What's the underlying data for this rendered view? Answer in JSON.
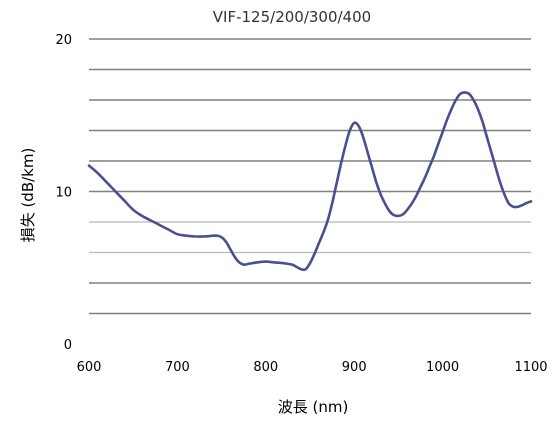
{
  "chart_data": {
    "type": "line",
    "title": "VIF-125/200/300/400",
    "xlabel": "波長 (nm)",
    "ylabel": "損失 (dB/km)",
    "xlim": [
      600,
      1100
    ],
    "ylim": [
      0,
      20
    ],
    "x_ticks": [
      "600",
      "700",
      "800",
      "900",
      "1000",
      "1100"
    ],
    "y_ticks": [
      "0",
      "10",
      "20"
    ],
    "grid": true,
    "series": [
      {
        "color": "#4b4f8f",
        "x": [
          600,
          610,
          620,
          630,
          640,
          650,
          660,
          670,
          680,
          690,
          700,
          710,
          720,
          730,
          740,
          745,
          750,
          755,
          760,
          765,
          770,
          775,
          780,
          790,
          800,
          810,
          820,
          830,
          835,
          840,
          845,
          850,
          855,
          860,
          865,
          870,
          875,
          880,
          885,
          890,
          895,
          900,
          905,
          910,
          915,
          920,
          925,
          930,
          935,
          940,
          945,
          950,
          955,
          960,
          965,
          970,
          975,
          980,
          985,
          990,
          995,
          1000,
          1005,
          1010,
          1015,
          1020,
          1025,
          1030,
          1035,
          1040,
          1045,
          1050,
          1055,
          1060,
          1065,
          1070,
          1075,
          1080,
          1085,
          1090,
          1095,
          1100
        ],
        "y": [
          11.7,
          11.2,
          10.6,
          10.0,
          9.4,
          8.8,
          8.4,
          8.1,
          7.8,
          7.5,
          7.2,
          7.1,
          7.05,
          7.05,
          7.1,
          7.1,
          7.0,
          6.7,
          6.2,
          5.7,
          5.35,
          5.2,
          5.25,
          5.35,
          5.4,
          5.35,
          5.3,
          5.2,
          5.05,
          4.9,
          4.9,
          5.3,
          5.9,
          6.6,
          7.3,
          8.1,
          9.2,
          10.5,
          11.8,
          13.0,
          14.0,
          14.5,
          14.3,
          13.6,
          12.6,
          11.6,
          10.6,
          9.8,
          9.2,
          8.7,
          8.45,
          8.4,
          8.5,
          8.8,
          9.2,
          9.7,
          10.3,
          10.9,
          11.6,
          12.3,
          13.1,
          13.9,
          14.7,
          15.4,
          16.0,
          16.4,
          16.5,
          16.4,
          16.0,
          15.4,
          14.6,
          13.6,
          12.6,
          11.6,
          10.6,
          9.8,
          9.2,
          9.0,
          9.0,
          9.1,
          9.25,
          9.35
        ]
      }
    ]
  }
}
